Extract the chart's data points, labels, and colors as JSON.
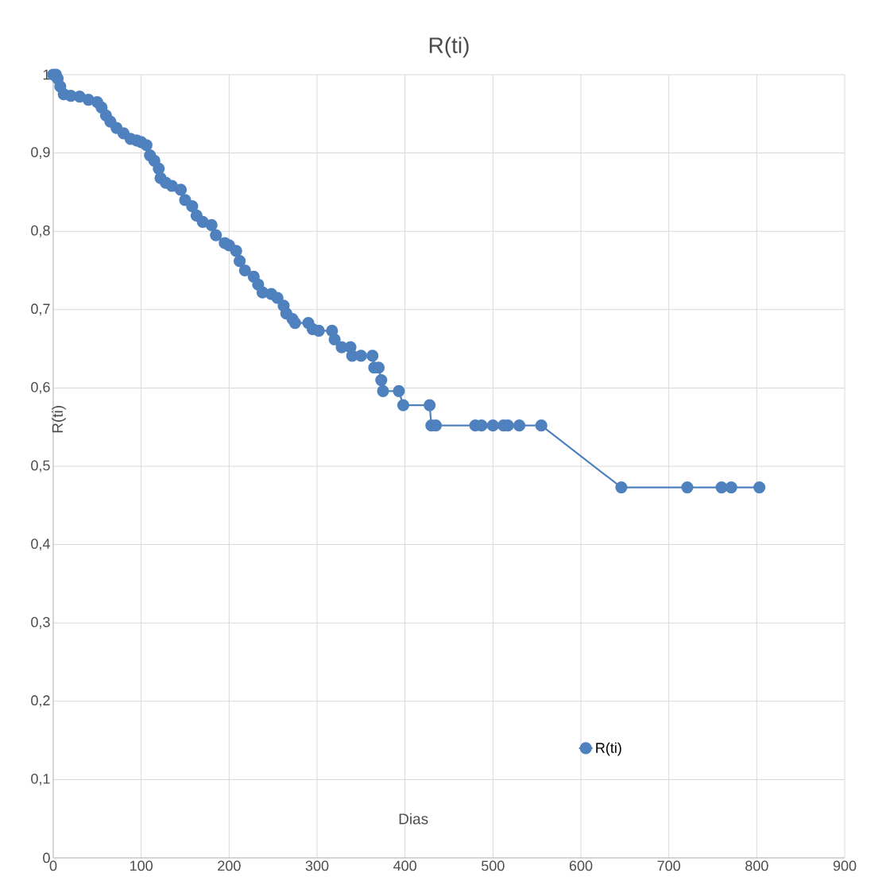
{
  "chart_data": {
    "type": "line",
    "title": "R(ti)",
    "xlabel": "Dias",
    "ylabel": "R(ti)",
    "x": [
      0,
      3,
      5,
      8,
      12,
      20,
      30,
      40,
      50,
      55,
      60,
      65,
      72,
      80,
      88,
      95,
      100,
      106,
      110,
      115,
      120,
      122,
      128,
      135,
      145,
      150,
      158,
      163,
      170,
      180,
      185,
      195,
      200,
      208,
      212,
      218,
      228,
      233,
      238,
      248,
      255,
      262,
      265,
      272,
      275,
      290,
      295,
      302,
      317,
      320,
      328,
      338,
      340,
      350,
      363,
      365,
      370,
      373,
      375,
      393,
      398,
      428,
      430,
      435,
      480,
      487,
      500,
      512,
      517,
      530,
      555,
      646,
      721,
      760,
      771,
      803
    ],
    "series": [
      {
        "name": "R(ti)",
        "color": "#4e81bd",
        "values": [
          1,
          1,
          0.995,
          0.985,
          0.975,
          0.973,
          0.972,
          0.968,
          0.965,
          0.958,
          0.948,
          0.94,
          0.932,
          0.925,
          0.918,
          0.916,
          0.914,
          0.91,
          0.897,
          0.89,
          0.88,
          0.868,
          0.862,
          0.858,
          0.853,
          0.84,
          0.832,
          0.82,
          0.812,
          0.808,
          0.795,
          0.785,
          0.782,
          0.775,
          0.762,
          0.75,
          0.742,
          0.732,
          0.722,
          0.72,
          0.715,
          0.705,
          0.695,
          0.688,
          0.683,
          0.683,
          0.675,
          0.673,
          0.673,
          0.662,
          0.652,
          0.652,
          0.641,
          0.641,
          0.641,
          0.626,
          0.626,
          0.61,
          0.596,
          0.596,
          0.578,
          0.578,
          0.552,
          0.552,
          0.552,
          0.552,
          0.552,
          0.552,
          0.552,
          0.552,
          0.552,
          0.473,
          0.473,
          0.473,
          0.473,
          0.473
        ]
      }
    ],
    "xlim": [
      0,
      900
    ],
    "xticks": [
      0,
      100,
      200,
      300,
      400,
      500,
      600,
      700,
      800,
      900
    ],
    "ylim": [
      0,
      1
    ],
    "yticks": [
      0,
      {
        "value": 0.1,
        "label": "0,1"
      },
      {
        "value": 0.2,
        "label": "0,2"
      },
      {
        "value": 0.3,
        "label": "0,3"
      },
      {
        "value": 0.4,
        "label": "0,4"
      },
      {
        "value": 0.5,
        "label": "0,5"
      },
      {
        "value": 0.6,
        "label": "0,6"
      },
      {
        "value": 0.7,
        "label": "0,7"
      },
      {
        "value": 0.8,
        "label": "0,8"
      },
      {
        "value": 0.9,
        "label": "0,9"
      },
      1
    ],
    "grid": true,
    "legend": "bottom right",
    "marker": "circle",
    "line_style": "solid"
  }
}
